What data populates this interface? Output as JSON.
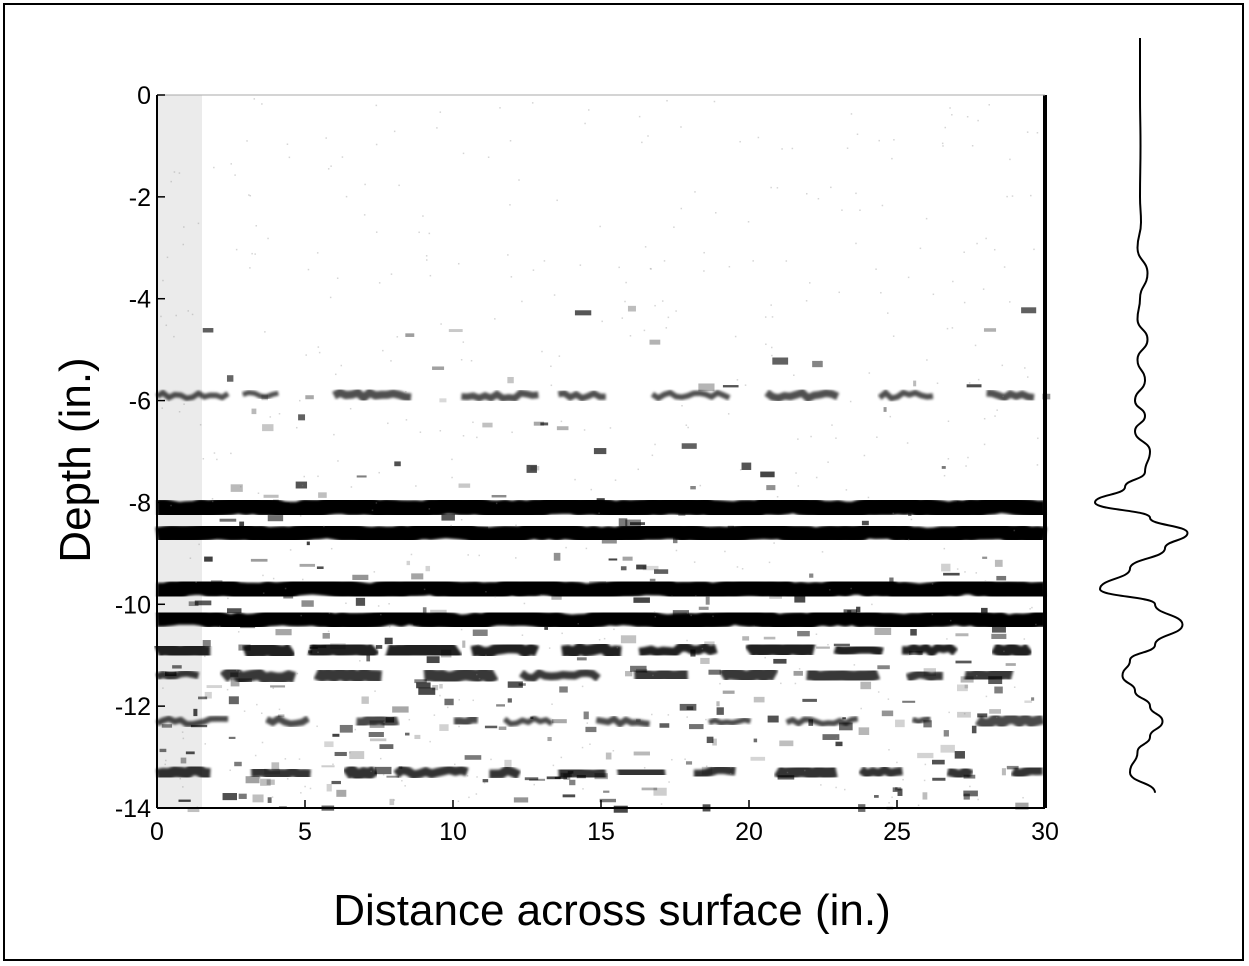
{
  "chart_data": {
    "type": "heatmap",
    "title": "",
    "xlabel": "Distance across surface (in.)",
    "ylabel": "Depth (in.)",
    "xlim": [
      0,
      30
    ],
    "ylim": [
      -14,
      0
    ],
    "x_ticks": [
      "0",
      "5",
      "10",
      "15",
      "20",
      "25",
      "30"
    ],
    "y_ticks": [
      "0",
      "-2",
      "-4",
      "-6",
      "-8",
      "-10",
      "-12",
      "-14"
    ],
    "colormap": "grayscale, black = high reflection amplitude",
    "grid": false,
    "legend": "none",
    "reflector_bands": [
      {
        "depth": -8.1,
        "intensity": 1.0
      },
      {
        "depth": -8.6,
        "intensity": 0.95
      },
      {
        "depth": -9.7,
        "intensity": 1.0
      },
      {
        "depth": -10.3,
        "intensity": 0.9
      },
      {
        "depth": -10.9,
        "intensity": 0.7
      },
      {
        "depth": -11.4,
        "intensity": 0.5
      },
      {
        "depth": -12.3,
        "intensity": 0.35
      },
      {
        "depth": -13.3,
        "intensity": 0.55
      },
      {
        "depth": -5.9,
        "intensity": 0.3
      }
    ],
    "side_trace": {
      "description": "average amplitude trace vs depth",
      "depth": [
        -13.7,
        -13.3,
        -12.9,
        -12.6,
        -12.3,
        -12.0,
        -11.7,
        -11.4,
        -11.1,
        -10.8,
        -10.4,
        -10.0,
        -9.7,
        -9.3,
        -8.9,
        -8.6,
        -8.3,
        -8.0,
        -7.7,
        -7.4,
        -7.0,
        -6.6,
        -6.3,
        -6.0,
        -5.6,
        -5.2,
        -4.8,
        -4.4,
        -4.0,
        -3.5,
        -3.0,
        -2.5,
        -2.0,
        -1.0,
        0,
        1.0,
        2.0
      ],
      "amplitude": [
        0.3,
        -0.2,
        -0.05,
        0.2,
        0.45,
        0.2,
        -0.1,
        -0.35,
        -0.2,
        0.3,
        0.85,
        0.3,
        -0.8,
        -0.2,
        0.5,
        0.95,
        0.2,
        -0.9,
        -0.3,
        0.1,
        0.2,
        -0.1,
        0.1,
        -0.1,
        0.1,
        -0.05,
        0.15,
        -0.05,
        0.0,
        0.15,
        -0.05,
        0.02,
        0.0,
        0.01,
        0.0,
        0.0,
        0.0
      ]
    }
  },
  "colors": {
    "ink": "#000000",
    "background": "#ffffff"
  }
}
